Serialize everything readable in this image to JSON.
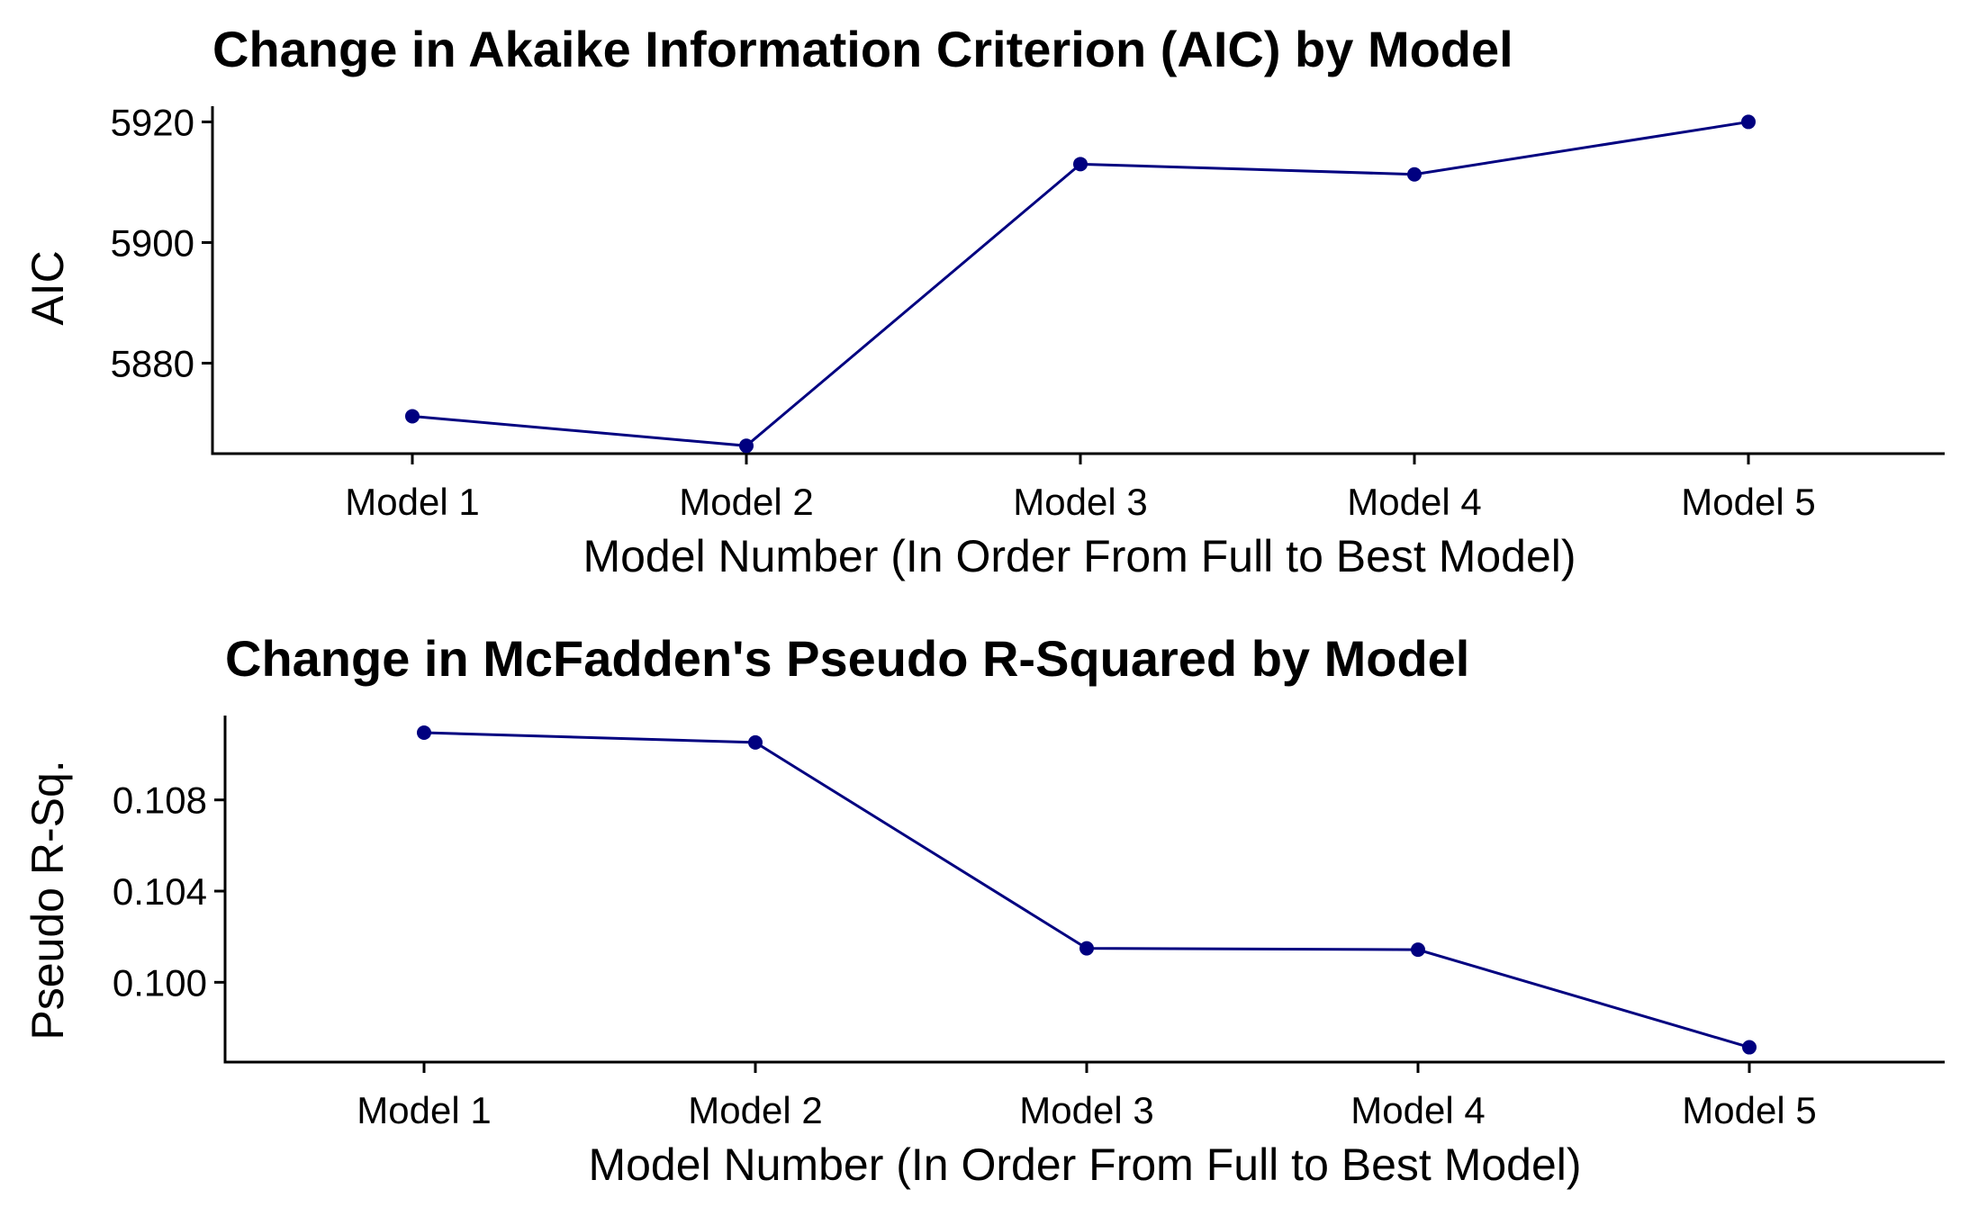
{
  "colors": {
    "series": "#000080",
    "axis": "#000000",
    "background": "#ffffff"
  },
  "chart_data": [
    {
      "type": "line",
      "title": "Change in Akaike Information Criterion (AIC) by Model",
      "xlabel": "Model Number (In Order From Full to Best Model)",
      "ylabel": "AIC",
      "categories": [
        "Model 1",
        "Model 2",
        "Model 3",
        "Model 4",
        "Model 5"
      ],
      "values": [
        5871.2,
        5866.3,
        5913.0,
        5911.3,
        5920.0
      ],
      "yticks": [
        5880,
        5900,
        5920
      ],
      "ylim": [
        5865.0,
        5922.6
      ],
      "grid": false,
      "legend": "none"
    },
    {
      "type": "line",
      "title": "Change in McFadden's Pseudo R-Squared by Model",
      "xlabel": "Model Number (In Order From Full to Best Model)",
      "ylabel": "Pseudo R-Sq.",
      "categories": [
        "Model 1",
        "Model 2",
        "Model 3",
        "Model 4",
        "Model 5"
      ],
      "values": [
        0.11095,
        0.11052,
        0.10149,
        0.10143,
        0.09715
      ],
      "ytickLabels": [
        "0.100",
        "0.104",
        "0.108"
      ],
      "yticks": [
        0.1,
        0.104,
        0.108
      ],
      "ylim": [
        0.0965,
        0.1117
      ],
      "grid": false,
      "legend": "none"
    }
  ]
}
